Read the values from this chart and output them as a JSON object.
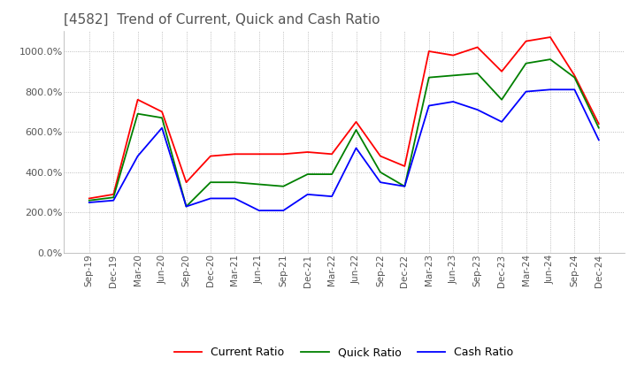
{
  "title": "[4582]  Trend of Current, Quick and Cash Ratio",
  "title_fontsize": 11,
  "ylim": [
    0,
    1100
  ],
  "yticks": [
    0,
    200,
    400,
    600,
    800,
    1000
  ],
  "ytick_labels": [
    "0.0%",
    "200.0%",
    "400.0%",
    "600.0%",
    "800.0%",
    "1000.0%"
  ],
  "background_color": "#ffffff",
  "x_labels": [
    "Sep-19",
    "Dec-19",
    "Mar-20",
    "Jun-20",
    "Sep-20",
    "Dec-20",
    "Mar-21",
    "Jun-21",
    "Sep-21",
    "Dec-21",
    "Mar-22",
    "Jun-22",
    "Sep-22",
    "Dec-22",
    "Mar-23",
    "Jun-23",
    "Sep-23",
    "Dec-23",
    "Mar-24",
    "Jun-24",
    "Sep-24",
    "Dec-24"
  ],
  "current_ratio": [
    270,
    290,
    760,
    700,
    350,
    480,
    490,
    490,
    490,
    500,
    490,
    650,
    480,
    430,
    1000,
    980,
    1020,
    900,
    1050,
    1070,
    880,
    640
  ],
  "quick_ratio": [
    260,
    275,
    690,
    670,
    230,
    350,
    350,
    340,
    330,
    390,
    390,
    610,
    400,
    330,
    870,
    880,
    890,
    760,
    940,
    960,
    870,
    620
  ],
  "cash_ratio": [
    250,
    260,
    480,
    620,
    230,
    270,
    270,
    210,
    210,
    290,
    280,
    520,
    350,
    330,
    730,
    750,
    710,
    650,
    800,
    810,
    810,
    560
  ],
  "current_color": "#ff0000",
  "quick_color": "#008000",
  "cash_color": "#0000ff",
  "line_width": 1.3,
  "grid_color": "#aaaaaa",
  "legend_labels": [
    "Current Ratio",
    "Quick Ratio",
    "Cash Ratio"
  ]
}
